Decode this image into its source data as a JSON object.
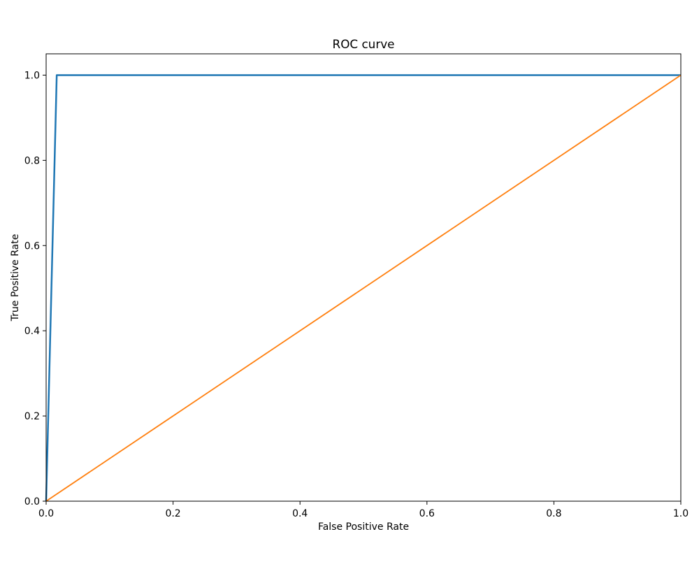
{
  "chart_data": {
    "type": "line",
    "title": "ROC curve",
    "xlabel": "False Positive Rate",
    "ylabel": "True Positive Rate",
    "xlim": [
      0.0,
      1.0
    ],
    "ylim": [
      0.0,
      1.05
    ],
    "xticks": [
      0.0,
      0.2,
      0.4,
      0.6,
      0.8,
      1.0
    ],
    "yticks": [
      0.0,
      0.2,
      0.4,
      0.6,
      0.8,
      1.0
    ],
    "xtick_labels": [
      "0.0",
      "0.2",
      "0.4",
      "0.6",
      "0.8",
      "1.0"
    ],
    "ytick_labels": [
      "0.0",
      "0.2",
      "0.4",
      "0.6",
      "0.8",
      "1.0"
    ],
    "grid": false,
    "legend": false,
    "series": [
      {
        "color": "#1f77b4",
        "x": [
          0.0,
          0.0167,
          1.0
        ],
        "y": [
          0.0,
          1.0,
          1.0
        ]
      },
      {
        "color": "#ff7f0e",
        "x": [
          0.0,
          1.0
        ],
        "y": [
          0.0,
          1.0
        ]
      }
    ]
  }
}
